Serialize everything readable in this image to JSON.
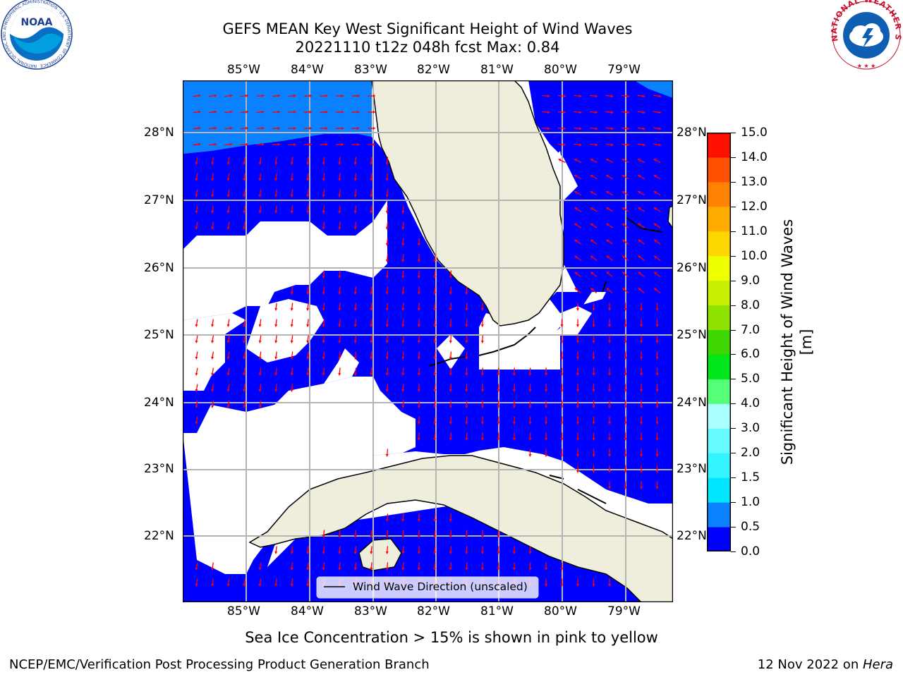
{
  "header": {
    "title_line1": "GEFS MEAN Key West Significant Height of Wind Waves",
    "title_line2": "20221110 t12z 048h fcst   Max: 0.84",
    "noaa_logo_text": "NOAA",
    "noaa_ring_text": "NATIONAL OCEANIC AND ATMOSPHERIC ADMINISTRATION · U.S. DEPARTMENT OF COMMERCE",
    "nws_ring_text": "NATIONAL WEATHER SERVICE"
  },
  "map": {
    "lon_labels": [
      "85°W",
      "84°W",
      "83°W",
      "82°W",
      "81°W",
      "80°W",
      "79°W"
    ],
    "lat_labels": [
      "28°N",
      "27°N",
      "26°N",
      "25°N",
      "24°N",
      "23°N",
      "22°N"
    ],
    "legend_label": "Wind Wave Direction (unscaled)",
    "land_color": "#efeedc",
    "ocean_low_color": "#0000ff",
    "ocean_mid_color": "#0a82ff",
    "arrow_color": "#ff0000"
  },
  "chart_data": {
    "type": "heatmap",
    "variable": "Significant Height of Wind Waves",
    "units": "m",
    "max_value": 0.84,
    "lon_range": [
      -86,
      -78.3
    ],
    "lat_range": [
      21,
      28.8
    ],
    "colorbar": {
      "label": "Significant Height of Wind Waves [m]",
      "ticks": [
        "0.0",
        "0.5",
        "1.0",
        "1.5",
        "2.0",
        "3.0",
        "4.0",
        "5.0",
        "6.0",
        "7.0",
        "8.0",
        "9.0",
        "10.0",
        "11.0",
        "12.0",
        "13.0",
        "14.0",
        "15.0"
      ],
      "colors": [
        "#0000ff",
        "#0a82ff",
        "#00e6ff",
        "#33f4ff",
        "#66fbff",
        "#aaffff",
        "#55ff77",
        "#00e61a",
        "#3dd600",
        "#8fe200",
        "#c8ee00",
        "#eeff00",
        "#ffd700",
        "#ffab00",
        "#ff8200",
        "#ff4f00",
        "#ff1000"
      ]
    }
  },
  "footer": {
    "note": "Sea Ice Concentration > 15% is shown in pink to yellow",
    "branch": "NCEP/EMC/Verification Post Processing Product Generation Branch",
    "date_text": "12 Nov 2022 on ",
    "host": "Hera"
  }
}
